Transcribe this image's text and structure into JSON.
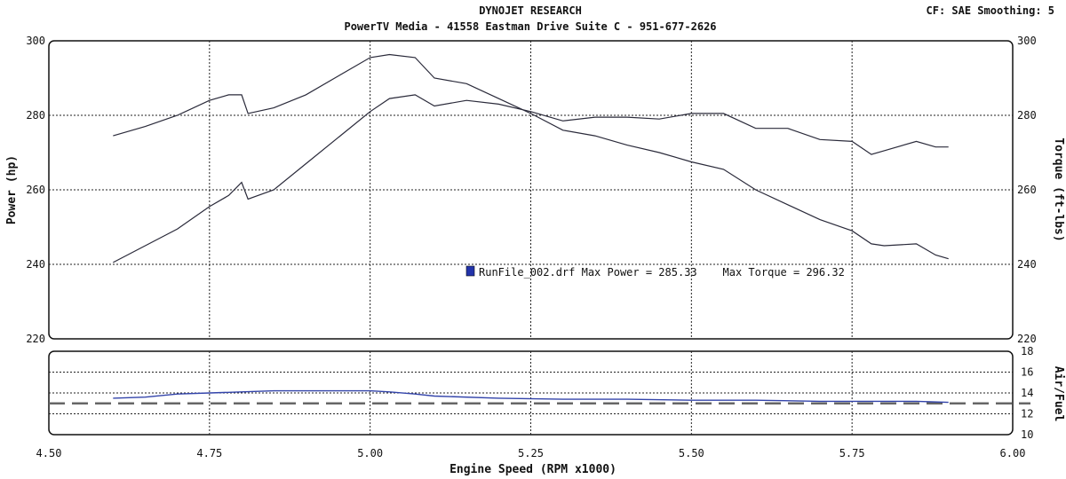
{
  "header": {
    "title": "DYNOJET RESEARCH",
    "subtitle": "PowerTV Media - 41558 Eastman Drive Suite C - 951-677-2626",
    "settings": "CF: SAE  Smoothing: 5"
  },
  "legend": {
    "text": "RunFile_002.drf Max Power = 285.33    Max Torque = 296.32",
    "color": "#2233aa"
  },
  "chart_data": [
    {
      "type": "line",
      "xlabel": "Engine Speed (RPM x1000)",
      "ylabel": "Power (hp)",
      "y2label": "Torque (ft-lbs)",
      "xlim": [
        4.5,
        6.0
      ],
      "ylim": [
        220,
        300
      ],
      "y2lim": [
        220,
        300
      ],
      "xticks": [
        "4.50",
        "4.75",
        "5.00",
        "5.25",
        "5.50",
        "5.75",
        "6.00"
      ],
      "yticks": [
        "300",
        "280",
        "260",
        "240",
        "220"
      ],
      "y2ticks": [
        "300",
        "280",
        "260",
        "240",
        "220"
      ],
      "grid": true,
      "series": [
        {
          "axis": "left",
          "x": [
            4.6,
            4.65,
            4.7,
            4.75,
            4.78,
            4.8,
            4.81,
            4.85,
            4.9,
            4.95,
            5.0,
            5.03,
            5.07,
            5.1,
            5.15,
            5.2,
            5.25,
            5.3,
            5.35,
            5.4,
            5.45,
            5.5,
            5.55,
            5.6,
            5.65,
            5.7,
            5.75,
            5.78,
            5.8,
            5.85,
            5.88,
            5.9
          ],
          "y": [
            240.5,
            245,
            249.5,
            255.5,
            258.5,
            262,
            257.5,
            260,
            267,
            274,
            281,
            284.5,
            285.5,
            282.5,
            284,
            283,
            281,
            278.5,
            279.5,
            279.5,
            279,
            280.5,
            280.5,
            276.5,
            276.5,
            273.5,
            273,
            269.5,
            270.5,
            273,
            271.5,
            271.5
          ]
        },
        {
          "axis": "right",
          "x": [
            4.6,
            4.65,
            4.7,
            4.75,
            4.78,
            4.8,
            4.81,
            4.85,
            4.9,
            4.95,
            5.0,
            5.03,
            5.07,
            5.1,
            5.15,
            5.2,
            5.25,
            5.3,
            5.35,
            5.4,
            5.45,
            5.5,
            5.55,
            5.6,
            5.65,
            5.7,
            5.75,
            5.78,
            5.8,
            5.85,
            5.88,
            5.9
          ],
          "y": [
            274.5,
            277,
            280,
            284,
            285.5,
            285.5,
            280.5,
            282,
            285.5,
            290.5,
            295.5,
            296.3,
            295.5,
            290,
            288.5,
            284.5,
            280.5,
            276,
            274.5,
            272,
            270,
            267.5,
            265.5,
            260,
            256,
            252,
            249,
            245.5,
            245,
            245.5,
            242.5,
            241.5
          ]
        }
      ]
    },
    {
      "type": "line",
      "ylabel": "Air/Fuel",
      "xlim": [
        4.5,
        6.0
      ],
      "ylim": [
        10,
        18
      ],
      "yticks": [
        "18",
        "16",
        "14",
        "12",
        "10"
      ],
      "reference": 13,
      "grid": true,
      "series": [
        {
          "x": [
            4.6,
            4.65,
            4.7,
            4.75,
            4.8,
            4.85,
            4.9,
            4.95,
            5.0,
            5.03,
            5.07,
            5.1,
            5.2,
            5.3,
            5.4,
            5.5,
            5.6,
            5.7,
            5.8,
            5.85,
            5.9
          ],
          "y": [
            13.5,
            13.6,
            13.9,
            14.0,
            14.1,
            14.2,
            14.2,
            14.2,
            14.2,
            14.1,
            13.9,
            13.7,
            13.5,
            13.4,
            13.4,
            13.3,
            13.3,
            13.2,
            13.2,
            13.2,
            13.1
          ]
        }
      ]
    }
  ]
}
